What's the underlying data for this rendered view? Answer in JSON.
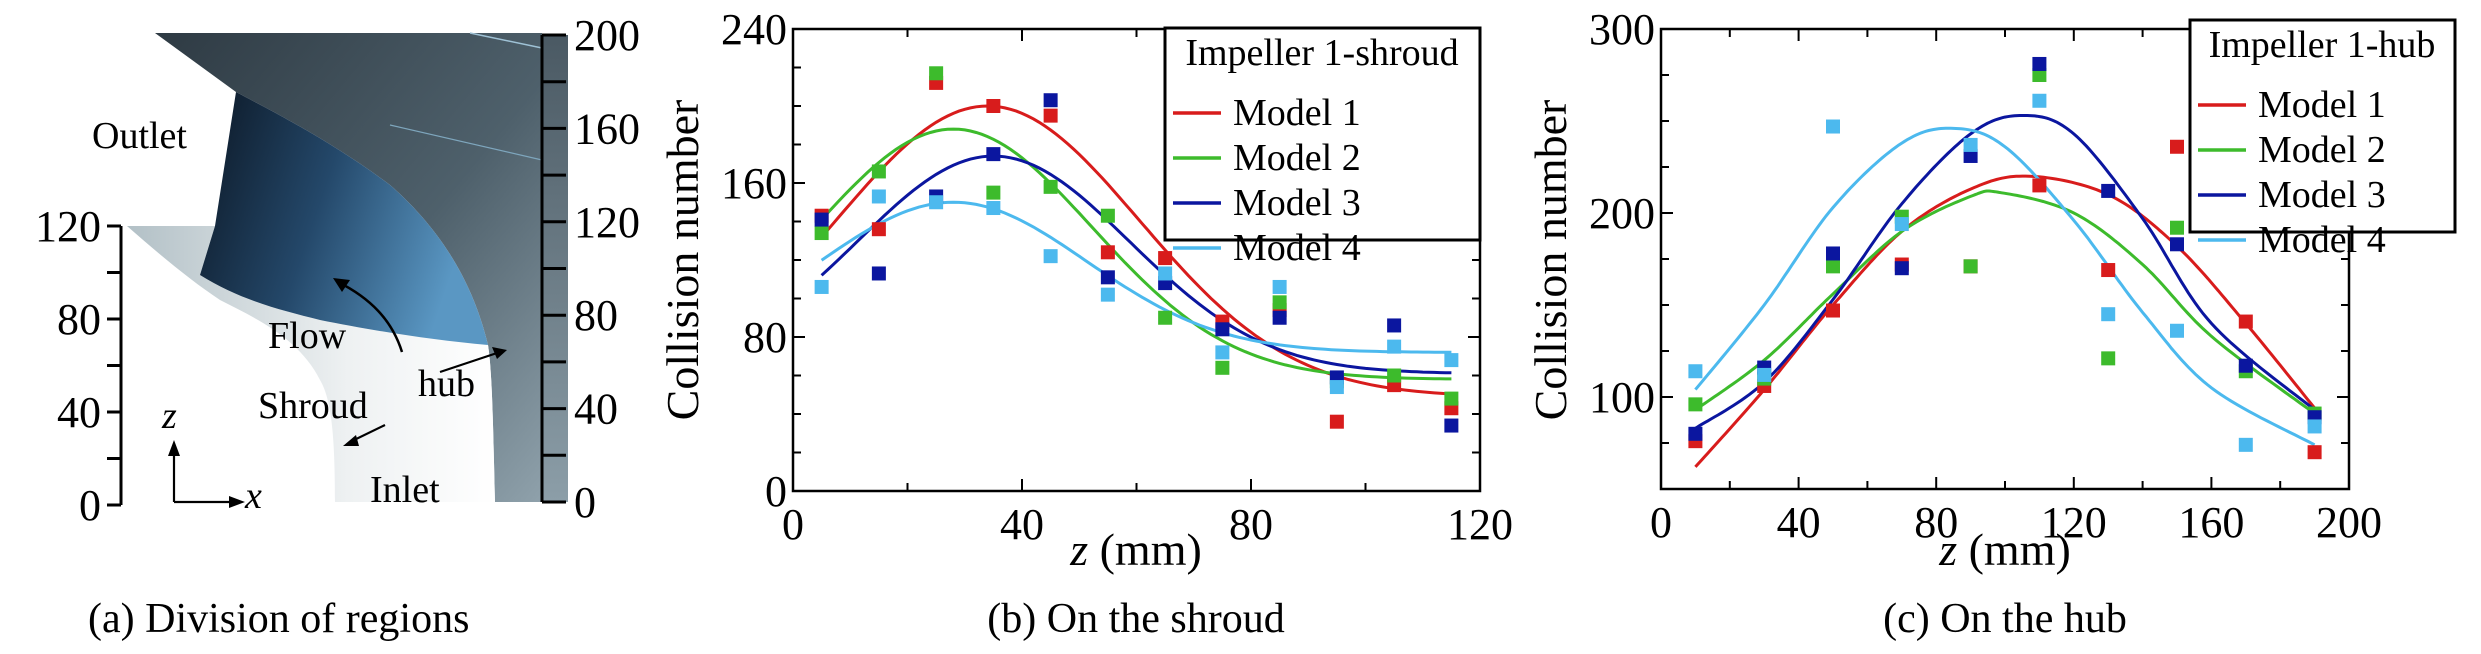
{
  "panel_a": {
    "caption": "(a) Division of regions",
    "labels": {
      "outlet": "Outlet",
      "flow": "Flow",
      "shroud": "Shroud",
      "hub": "hub",
      "inlet": "Inlet",
      "z_axis": "z",
      "x_axis": "x"
    },
    "left_scale": {
      "ticks": [
        "0",
        "40",
        "80",
        "120"
      ],
      "range": [
        0,
        120
      ]
    },
    "right_scale": {
      "ticks": [
        "0",
        "40",
        "80",
        "120",
        "160",
        "200"
      ],
      "range": [
        0,
        200
      ]
    },
    "colors": {
      "hub_dark": "#3f4d57",
      "hub_light": "#8a9ca6",
      "blade_dark": "#0e1a2a",
      "blade_light": "#4f88b4",
      "shroud_light": "#f2f4f5",
      "shroud_mid": "#b9c6cc"
    }
  },
  "chart_data": [
    {
      "id": "shroud",
      "type": "scatter",
      "title": "",
      "caption": "(b) On the shroud",
      "xlabel_var": "z",
      "xlabel_unit": " (mm)",
      "ylabel": "Collision number",
      "xlim": [
        0,
        120
      ],
      "ylim": [
        0,
        240
      ],
      "xticks": [
        0,
        40,
        80,
        120
      ],
      "xminor": 20,
      "yticks": [
        0,
        80,
        160,
        240
      ],
      "yminor": 20,
      "grid": false,
      "legend": {
        "title": "Impeller 1-shroud",
        "placement": "top-right"
      },
      "x": [
        5,
        15,
        25,
        35,
        45,
        55,
        65,
        75,
        85,
        95,
        105,
        115
      ],
      "series": [
        {
          "name": "Model 1",
          "color": "#d81c1c",
          "values": [
            143,
            136,
            212,
            200,
            195,
            124,
            121,
            88,
            94,
            36,
            55,
            43
          ],
          "fit": {
            "base": 49,
            "amp": 151,
            "mu": 34,
            "sigma": 26.5
          }
        },
        {
          "name": "Model 2",
          "color": "#3dbb2c",
          "values": [
            134,
            166,
            217,
            155,
            158,
            143,
            90,
            64,
            98,
            57,
            60,
            48
          ],
          "fit": {
            "base": 58,
            "amp": 130,
            "mu": 28,
            "sigma": 24.3
          }
        },
        {
          "name": "Model 3",
          "color": "#0b169f",
          "values": [
            141,
            113,
            153,
            175,
            203,
            111,
            108,
            84,
            90,
            59,
            86,
            34
          ],
          "fit": {
            "base": 61,
            "amp": 113,
            "mu": 35,
            "sigma": 23.8
          }
        },
        {
          "name": "Model 4",
          "color": "#4cb9ee",
          "values": [
            106,
            153,
            150,
            147,
            122,
            102,
            113,
            72,
            106,
            54,
            75,
            68
          ],
          "fit": {
            "base": 72,
            "amp": 78,
            "mu": 28,
            "sigma": 23.3
          }
        }
      ]
    },
    {
      "id": "hub",
      "type": "scatter",
      "title": "",
      "caption": "(c) On the hub",
      "xlabel_var": "z",
      "xlabel_unit": " (mm)",
      "ylabel": "Collision number",
      "xlim": [
        0,
        200
      ],
      "ylim": [
        50,
        300
      ],
      "xticks": [
        0,
        40,
        80,
        120,
        160,
        200
      ],
      "xminor": 20,
      "yticks": [
        100,
        200,
        300
      ],
      "yminor": 25,
      "grid": false,
      "legend": {
        "title": "Impeller 1-hub",
        "placement": "top-right"
      },
      "x": [
        10,
        30,
        50,
        70,
        90,
        110,
        130,
        150,
        170,
        190
      ],
      "series": [
        {
          "name": "Model 1",
          "color": "#d81c1c",
          "values": [
            76,
            106,
            147,
            172,
            171,
            215,
            169,
            236,
            141,
            70
          ],
          "fit_points": [
            [
              10,
              62
            ],
            [
              30,
              104
            ],
            [
              50,
              150
            ],
            [
              70,
              190
            ],
            [
              90,
              213
            ],
            [
              107,
              220
            ],
            [
              130,
              210
            ],
            [
              150,
              182
            ],
            [
              170,
              140
            ],
            [
              190,
              94
            ]
          ]
        },
        {
          "name": "Model 2",
          "color": "#3dbb2c",
          "values": [
            96,
            110,
            171,
            198,
            171,
            275,
            121,
            192,
            114,
            91
          ],
          "fit_points": [
            [
              10,
              93
            ],
            [
              30,
              120
            ],
            [
              50,
              156
            ],
            [
              70,
              190
            ],
            [
              90,
              209
            ],
            [
              99,
              211
            ],
            [
              120,
              200
            ],
            [
              140,
              172
            ],
            [
              160,
              133
            ],
            [
              190,
              91
            ]
          ]
        },
        {
          "name": "Model 3",
          "color": "#0b169f",
          "values": [
            80,
            116,
            178,
            170,
            231,
            281,
            212,
            183,
            117,
            89
          ],
          "fit_points": [
            [
              10,
              83
            ],
            [
              30,
              108
            ],
            [
              50,
              153
            ],
            [
              70,
              205
            ],
            [
              90,
              243
            ],
            [
              105,
              253
            ],
            [
              120,
              243
            ],
            [
              140,
              197
            ],
            [
              160,
              140
            ],
            [
              190,
              93
            ]
          ]
        },
        {
          "name": "Model 4",
          "color": "#4cb9ee",
          "values": [
            114,
            112,
            247,
            194,
            237,
            261,
            145,
            136,
            74,
            84
          ],
          "fit_points": [
            [
              10,
              104
            ],
            [
              30,
              150
            ],
            [
              50,
              203
            ],
            [
              70,
              238
            ],
            [
              85,
              246
            ],
            [
              100,
              236
            ],
            [
              120,
              196
            ],
            [
              140,
              146
            ],
            [
              160,
              105
            ],
            [
              190,
              74
            ]
          ]
        }
      ]
    }
  ]
}
